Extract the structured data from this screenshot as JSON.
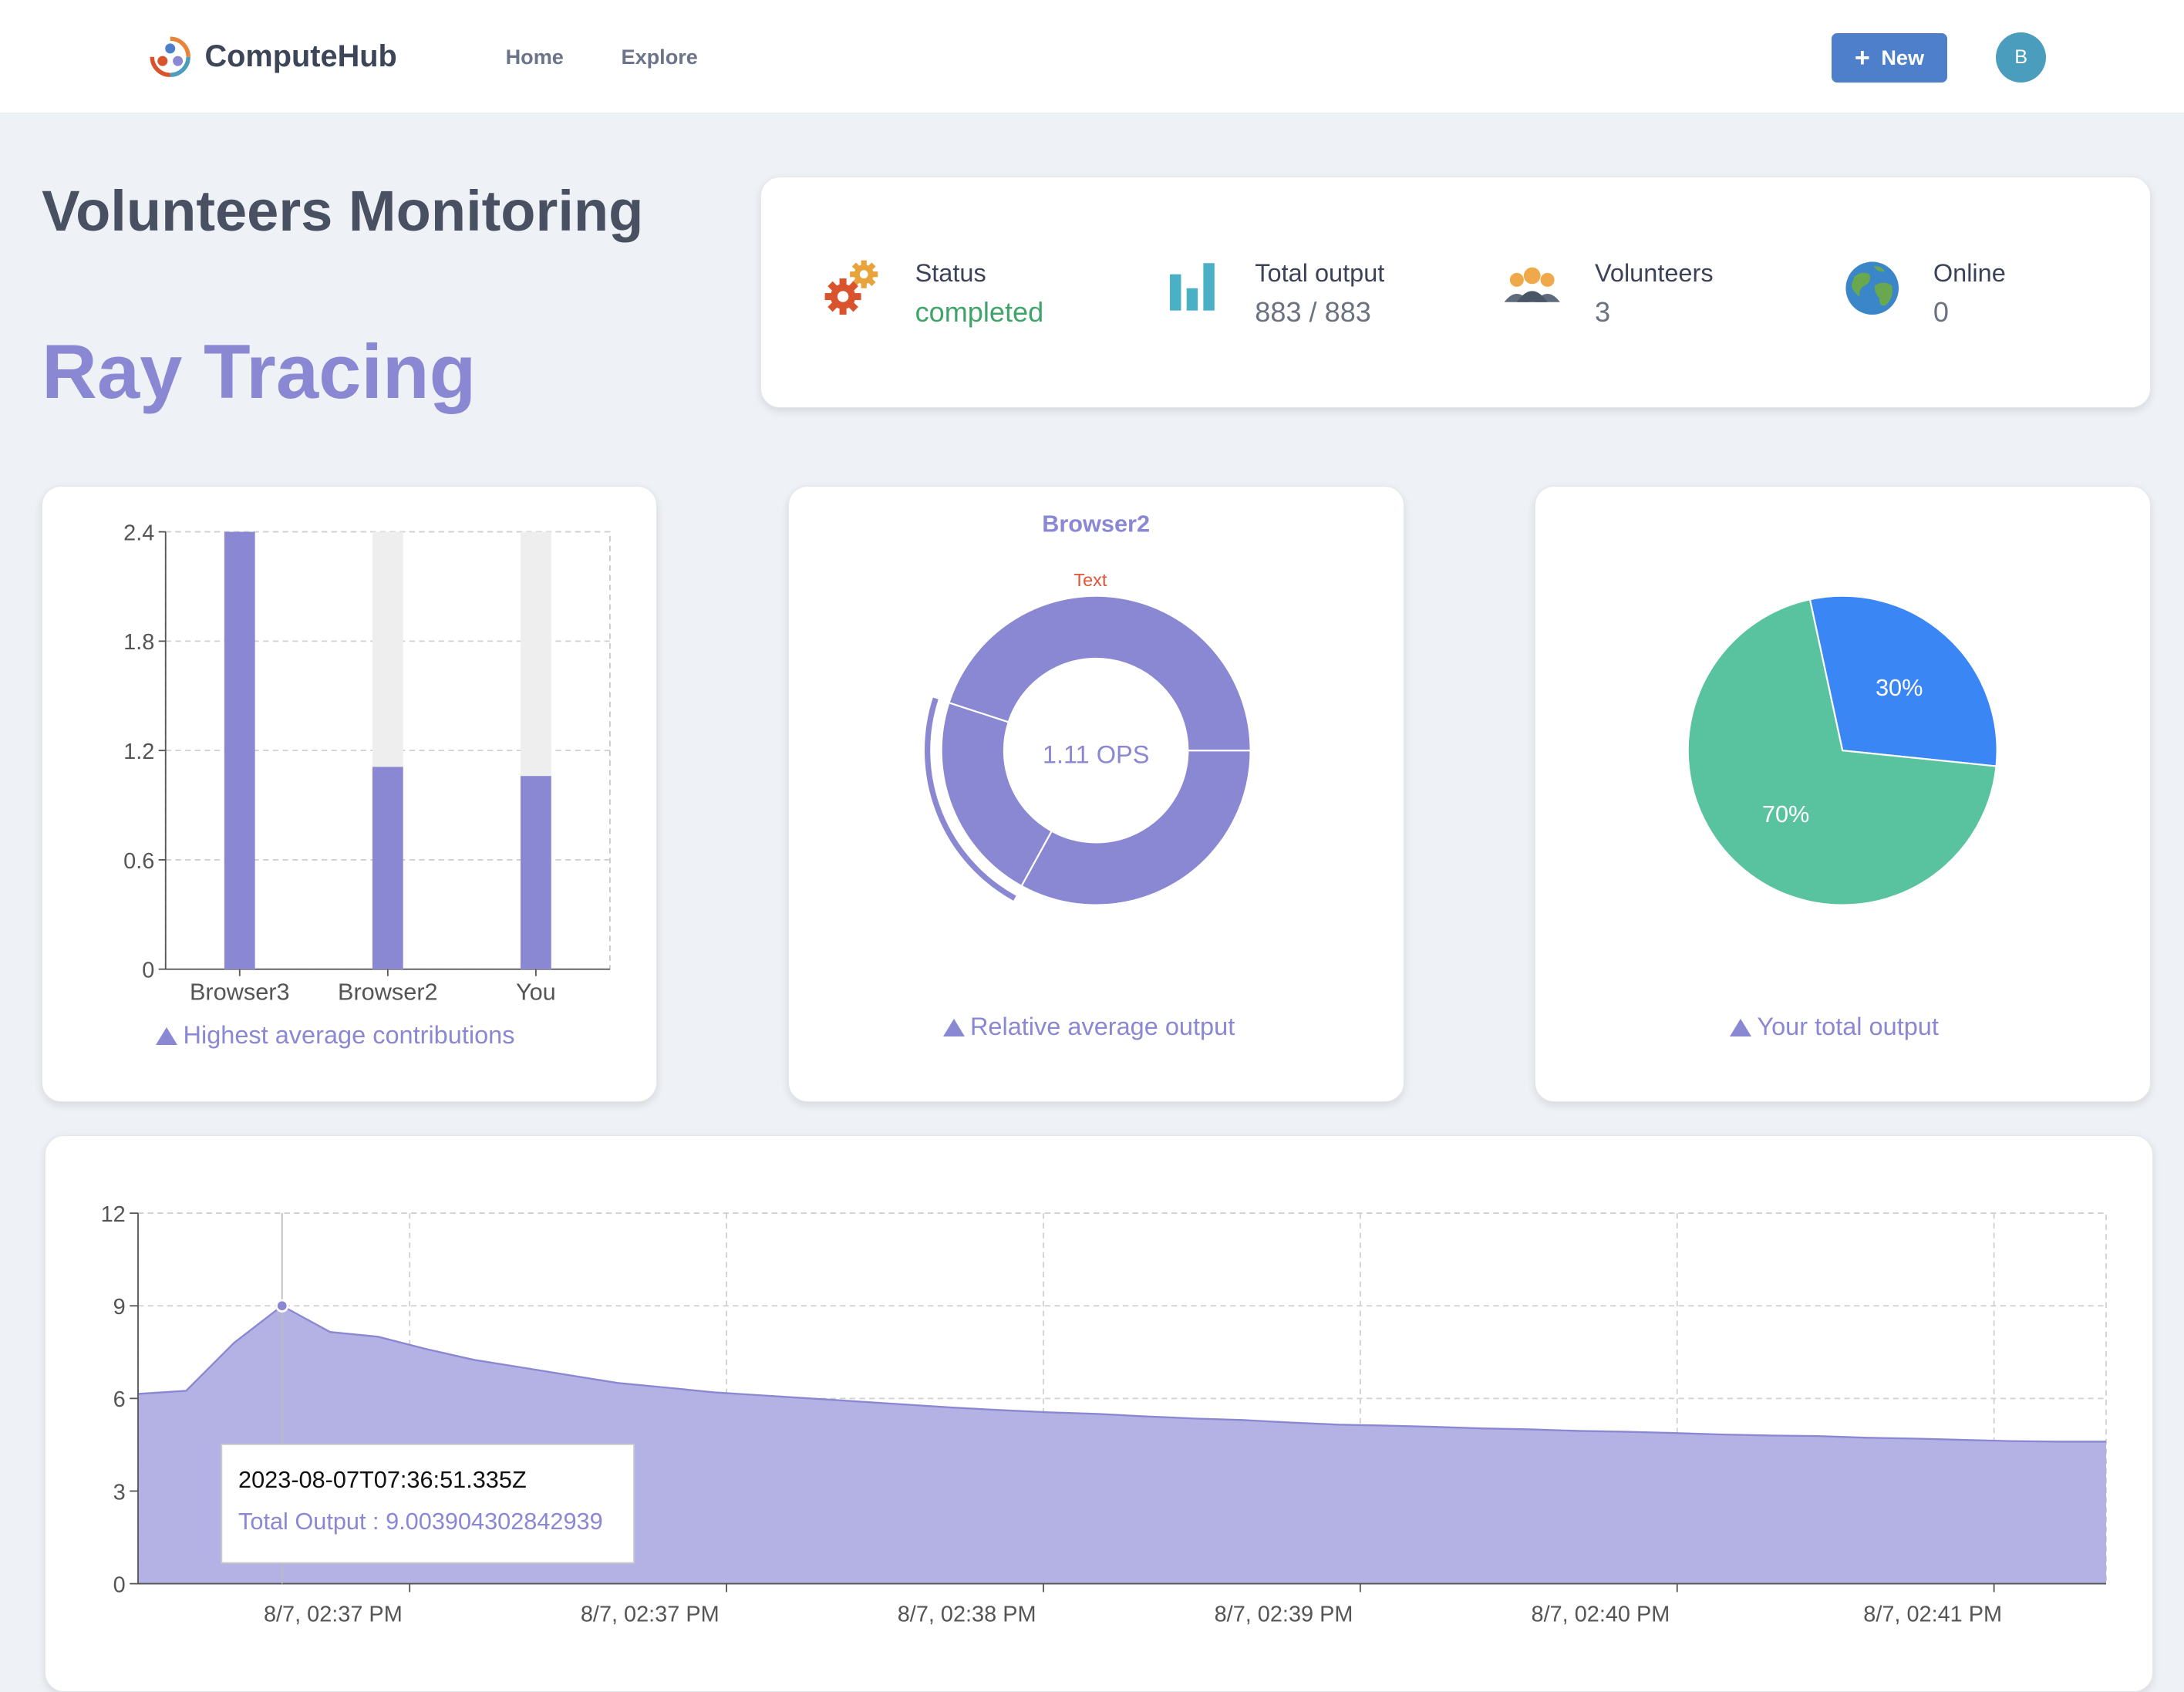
{
  "nav": {
    "brand": "ComputeHub",
    "links": [
      "Home",
      "Explore"
    ],
    "new_label": "New",
    "avatar_initial": "B"
  },
  "page": {
    "title": "Volunteers Monitoring",
    "project": "Ray Tracing"
  },
  "stats": [
    {
      "label": "Status",
      "value": "completed",
      "icon": "gears-icon"
    },
    {
      "label": "Total output",
      "value": "883 / 883",
      "icon": "bar-chart-icon"
    },
    {
      "label": "Volunteers",
      "value": "3",
      "icon": "people-icon"
    },
    {
      "label": "Online",
      "value": "0",
      "icon": "globe-icon"
    }
  ],
  "colors": {
    "accent": "#8a87d3",
    "green": "#3fa46a",
    "button": "#4d7fca",
    "pie_blue": "#3b86f5",
    "pie_green": "#59c39f",
    "area_fill": "#b4b2e4"
  },
  "charts": {
    "bar_caption": "Highest average contributions",
    "donut_caption": "Relative average output",
    "pie_caption": "Your total output"
  },
  "chart_data": [
    {
      "type": "bar",
      "categories": [
        "Browser3",
        "Browser2",
        "You"
      ],
      "values": [
        2.4,
        1.11,
        1.06
      ],
      "max": 2.4,
      "ylim": [
        0,
        2.4
      ],
      "yticks": [
        0,
        0.6,
        1.2,
        1.8,
        2.4
      ],
      "grid": true
    },
    {
      "type": "pie",
      "title": "Browser2",
      "annotation": "Text",
      "center_label": "1.11 OPS",
      "slices": [
        0.33,
        0.22,
        0.45
      ],
      "highlighted_slice": 1
    },
    {
      "type": "pie",
      "slices": [
        {
          "label": "30%",
          "value": 30,
          "color": "#3b86f5"
        },
        {
          "label": "70%",
          "value": 70,
          "color": "#59c39f"
        }
      ]
    },
    {
      "type": "area",
      "ylim": [
        0,
        12
      ],
      "yticks": [
        0,
        3,
        6,
        9,
        12
      ],
      "xticks": [
        "8/7, 02:37 PM",
        "8/7, 02:37 PM",
        "8/7, 02:38 PM",
        "8/7, 02:39 PM",
        "8/7, 02:40 PM",
        "8/7, 02:41 PM"
      ],
      "grid": true,
      "y": [
        6.15,
        6.25,
        7.8,
        9.0,
        8.15,
        8.0,
        7.6,
        7.25,
        7.0,
        6.75,
        6.5,
        6.35,
        6.2,
        6.1,
        6.0,
        5.9,
        5.8,
        5.7,
        5.62,
        5.55,
        5.5,
        5.42,
        5.35,
        5.3,
        5.22,
        5.15,
        5.12,
        5.08,
        5.03,
        5.0,
        4.95,
        4.92,
        4.88,
        4.83,
        4.8,
        4.78,
        4.73,
        4.7,
        4.66,
        4.62,
        4.6,
        4.6
      ],
      "tooltip": {
        "time": "2023-08-07T07:36:51.335Z",
        "series": "Total Output",
        "value": "9.003904302842939"
      }
    }
  ]
}
